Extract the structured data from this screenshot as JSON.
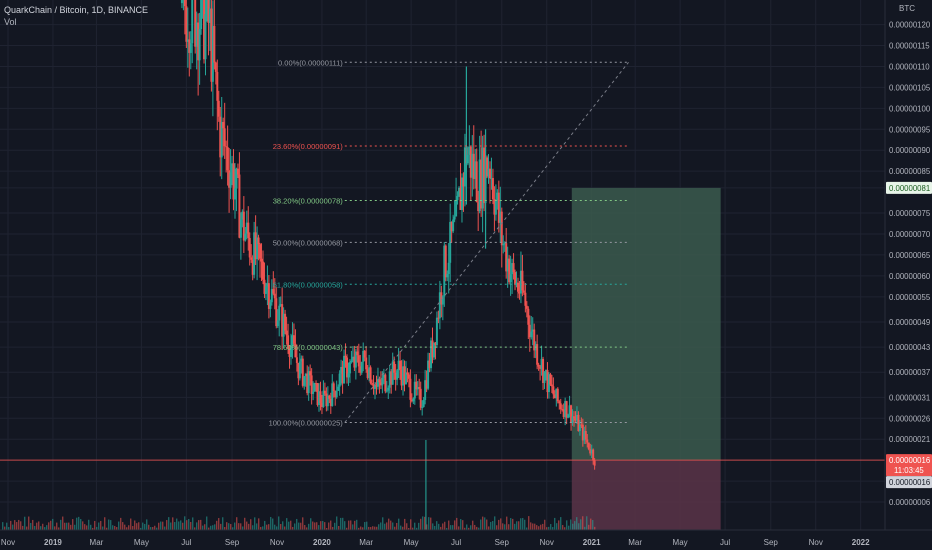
{
  "header": {
    "title": "QuarkChain / Bitcoin, 1D, BINANCE",
    "volume_label": "Vol"
  },
  "currency_label": "BTC",
  "colors": {
    "bg": "#131722",
    "grid": "#1f2331",
    "text": "#b2b5be",
    "up": "#26a69a",
    "down": "#ef5350",
    "price_line": "#ef5350",
    "fib_neutral": "#9598a1",
    "fib_red": "#ef5350",
    "fib_green": "#81c784",
    "fib_teal": "#26a69a",
    "profit_zone": "#3b5a4e",
    "loss_zone": "#5a3448"
  },
  "chart_data": {
    "type": "candlestick",
    "pair": "QuarkChain / Bitcoin",
    "y_axis_ticks": [
      "0.00000120",
      "0.00000115",
      "0.00000110",
      "0.00000105",
      "0.00000100",
      "0.00000095",
      "0.00000090",
      "0.00000085",
      "0.00000081",
      "0.00000075",
      "0.00000070",
      "0.00000065",
      "0.00000060",
      "0.00000055",
      "0.00000049",
      "0.00000043",
      "0.00000037",
      "0.00000031",
      "0.00000026",
      "0.00000021",
      "0.00000016",
      "0.00000011",
      "0.00000006"
    ],
    "x_axis_ticks": [
      "Nov",
      "2019",
      "Mar",
      "May",
      "Jul",
      "Sep",
      "Nov",
      "2020",
      "Mar",
      "May",
      "Jul",
      "Sep",
      "Nov",
      "2021",
      "Mar",
      "May",
      "Jul",
      "Sep",
      "Nov",
      "2022"
    ],
    "x_axis_bold": [
      "2019",
      "2020",
      "2021",
      "2022"
    ],
    "ylim": [
      1e-08,
      1.23e-06
    ],
    "price_path": [
      {
        "date": "2018-11-01",
        "price": 1.3e-06
      },
      {
        "date": "2019-07-01",
        "price": 1.25e-06
      },
      {
        "date": "2019-08-01",
        "price": 1.2e-06
      },
      {
        "date": "2019-08-15",
        "price": 9.5e-07
      },
      {
        "date": "2019-09-01",
        "price": 8.5e-07
      },
      {
        "date": "2019-09-15",
        "price": 7.2e-07
      },
      {
        "date": "2019-10-01",
        "price": 6.5e-07
      },
      {
        "date": "2019-10-15",
        "price": 6e-07
      },
      {
        "date": "2019-11-01",
        "price": 5.2e-07
      },
      {
        "date": "2019-11-15",
        "price": 4.6e-07
      },
      {
        "date": "2019-12-01",
        "price": 3.8e-07
      },
      {
        "date": "2019-12-15",
        "price": 3.4e-07
      },
      {
        "date": "2020-01-01",
        "price": 3e-07
      },
      {
        "date": "2020-01-15",
        "price": 3.2e-07
      },
      {
        "date": "2020-02-01",
        "price": 3.8e-07
      },
      {
        "date": "2020-02-15",
        "price": 3.9e-07
      },
      {
        "date": "2020-03-01",
        "price": 4e-07
      },
      {
        "date": "2020-03-15",
        "price": 3.3e-07
      },
      {
        "date": "2020-04-01",
        "price": 3.6e-07
      },
      {
        "date": "2020-04-15",
        "price": 3.8e-07
      },
      {
        "date": "2020-05-01",
        "price": 3.3e-07
      },
      {
        "date": "2020-05-15",
        "price": 3e-07
      },
      {
        "date": "2020-06-01",
        "price": 4.5e-07
      },
      {
        "date": "2020-06-15",
        "price": 6.2e-07
      },
      {
        "date": "2020-07-01",
        "price": 7.2e-07
      },
      {
        "date": "2020-07-15",
        "price": 9e-07
      },
      {
        "date": "2020-08-01",
        "price": 8.2e-07
      },
      {
        "date": "2020-08-15",
        "price": 8.8e-07
      },
      {
        "date": "2020-09-01",
        "price": 6.9e-07
      },
      {
        "date": "2020-09-15",
        "price": 6e-07
      },
      {
        "date": "2020-10-01",
        "price": 5.5e-07
      },
      {
        "date": "2020-10-15",
        "price": 4.4e-07
      },
      {
        "date": "2020-11-01",
        "price": 3.5e-07
      },
      {
        "date": "2020-11-15",
        "price": 3e-07
      },
      {
        "date": "2020-12-01",
        "price": 2.8e-07
      },
      {
        "date": "2020-12-15",
        "price": 2.4e-07
      },
      {
        "date": "2021-01-01",
        "price": 1.8e-07
      },
      {
        "date": "2021-01-05",
        "price": 1.6e-07
      }
    ],
    "highlights": [
      {
        "date": "2020-07-15",
        "high": 1.1e-06
      },
      {
        "date": "2020-08-10",
        "high": 9.5e-07
      }
    ],
    "fib_retracement": {
      "levels": [
        {
          "label": "0.00%(0.00000111)",
          "price": 1.11e-06,
          "color": "#9598a1"
        },
        {
          "label": "23.60%(0.00000091)",
          "price": 9.1e-07,
          "color": "#ef5350"
        },
        {
          "label": "38.20%(0.00000078)",
          "price": 7.8e-07,
          "color": "#81c784"
        },
        {
          "label": "50.00%(0.00000068)",
          "price": 6.8e-07,
          "color": "#9598a1"
        },
        {
          "label": "61.80%(0.00000058)",
          "price": 5.8e-07,
          "color": "#26a69a"
        },
        {
          "label": "78.60%(0.00000043)",
          "price": 4.3e-07,
          "color": "#81c784"
        },
        {
          "label": "100.00%(0.00000025)",
          "price": 2.5e-07,
          "color": "#9598a1"
        }
      ],
      "from": {
        "date": "2020-02-01",
        "price": 2.5e-07
      },
      "to": {
        "date": "2021-02-20",
        "price": 1.11e-06
      },
      "end_date": "2021-02-20"
    },
    "position": {
      "start_date": "2020-12-05",
      "end_date": "2021-06-25",
      "entry": 1.6e-07,
      "target": 8.1e-07,
      "stop": 1e-08
    },
    "current_price": {
      "label": "0.00000016",
      "countdown": "11:03:45",
      "value": 1.6e-07
    },
    "target_price_label": {
      "label": "0.00000081",
      "value": 8.1e-07
    },
    "volume_label": {
      "label": "0.00000016"
    }
  }
}
